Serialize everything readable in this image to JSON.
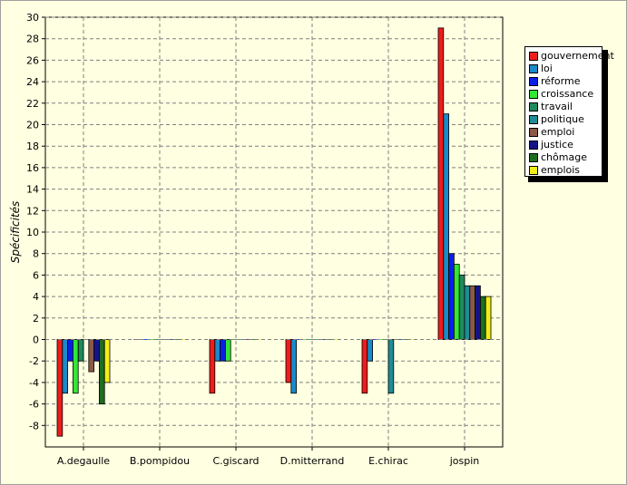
{
  "chart_data": {
    "type": "bar",
    "title": "",
    "xlabel": "",
    "ylabel": "Spécificités",
    "ylim": [
      -10,
      30
    ],
    "yticks": [
      30,
      28,
      26,
      24,
      22,
      20,
      18,
      16,
      14,
      12,
      10,
      8,
      6,
      4,
      2,
      0,
      -2,
      -4,
      -6,
      -8
    ],
    "grid": true,
    "legend_position": "top-right",
    "categories": [
      "A.degaulle",
      "B.pompidou",
      "C.giscard",
      "D.mitterrand",
      "E.chirac",
      "jospin"
    ],
    "series": [
      {
        "name": "gouvernement",
        "color": "#ee1c1c",
        "values": [
          -9,
          0,
          -5,
          -4,
          -5,
          29
        ]
      },
      {
        "name": "loi",
        "color": "#1a8ac8",
        "values": [
          -5,
          0,
          -2,
          -5,
          -2,
          21
        ]
      },
      {
        "name": "réforme",
        "color": "#0a1ee8",
        "values": [
          -2,
          0,
          -2,
          0,
          0,
          8
        ]
      },
      {
        "name": "croissance",
        "color": "#32e832",
        "values": [
          -5,
          0,
          -2,
          0,
          0,
          7
        ]
      },
      {
        "name": "travail",
        "color": "#1f8a5c",
        "values": [
          -2,
          0,
          0,
          0,
          0,
          6
        ]
      },
      {
        "name": "politique",
        "color": "#1f8c96",
        "values": [
          0,
          0,
          0,
          0,
          -5,
          5
        ]
      },
      {
        "name": "emploi",
        "color": "#8a5a46",
        "values": [
          -3,
          0,
          0,
          0,
          0,
          5
        ]
      },
      {
        "name": "justice",
        "color": "#14148a",
        "values": [
          -2,
          0,
          0,
          0,
          0,
          5
        ]
      },
      {
        "name": "chômage",
        "color": "#1e6e1e",
        "values": [
          -6,
          0,
          0,
          0,
          0,
          4
        ]
      },
      {
        "name": "emplois",
        "color": "#f2ee1a",
        "values": [
          -4,
          0,
          0,
          0,
          0,
          4
        ]
      }
    ]
  }
}
